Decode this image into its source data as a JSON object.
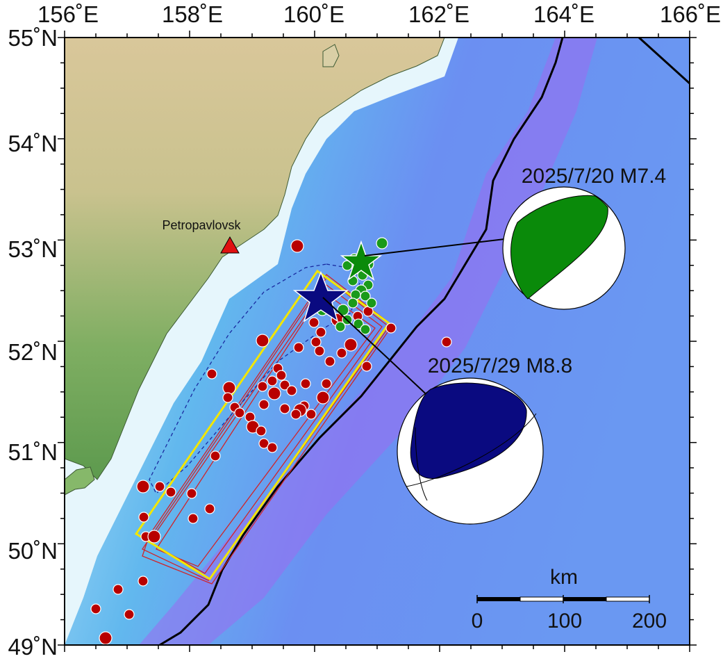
{
  "map": {
    "lon_labels": [
      "156˚E",
      "158˚E",
      "160˚E",
      "162˚E",
      "164˚E",
      "166˚E"
    ],
    "lat_labels": [
      "55˚N",
      "54˚N",
      "53˚N",
      "52˚N",
      "51˚N",
      "50˚N",
      "49˚N"
    ],
    "city": {
      "name": "Petropavlovsk"
    },
    "events": [
      {
        "label": "2025/7/20 M7.4",
        "color": "#0a8a0a"
      },
      {
        "label": "2025/7/29 M8.8",
        "color": "#0a0a80"
      }
    ],
    "scale_bar": {
      "unit": "km",
      "ticks": [
        "0",
        "100",
        "200"
      ]
    },
    "colors": {
      "aftershock_red": "#b80000",
      "aftershock_green": "#1a9a1a",
      "fault_outline": "#f2e600",
      "trench": "#000000",
      "land": "#86b86a",
      "shallow_sea": "#eef8fc",
      "deep_sea": "#5f8df0"
    }
  }
}
